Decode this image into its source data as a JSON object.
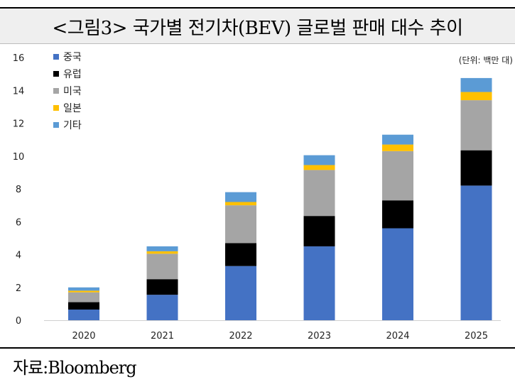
{
  "header": {
    "title": "<그림3> 국가별 전기차(BEV) 글로벌 판매 대수 추이"
  },
  "footer": {
    "source": "자료:Bloomberg"
  },
  "chart_data": {
    "type": "bar",
    "stacked": true,
    "title": "<그림3> 국가별 전기차(BEV) 글로벌 판매 대수 추이",
    "unit_label": "(단위: 백만 대)",
    "xlabel": "",
    "ylabel": "",
    "ylim": [
      0,
      16
    ],
    "yticks": [
      0,
      2,
      4,
      6,
      8,
      10,
      12,
      14,
      16
    ],
    "grid": false,
    "legend": "top-left",
    "categories": [
      "2020",
      "2021",
      "2022",
      "2023",
      "2024",
      "2025"
    ],
    "series": [
      {
        "name": "중국",
        "color": "#4472c4",
        "values": [
          0.65,
          1.55,
          3.3,
          4.5,
          5.6,
          8.2
        ]
      },
      {
        "name": "유럽",
        "color": "#000000",
        "values": [
          0.45,
          0.95,
          1.4,
          1.85,
          1.7,
          2.15
        ]
      },
      {
        "name": "미국",
        "color": "#a5a5a5",
        "values": [
          0.6,
          1.55,
          2.3,
          2.8,
          3.0,
          3.05
        ]
      },
      {
        "name": "일본",
        "color": "#ffc000",
        "values": [
          0.1,
          0.15,
          0.2,
          0.3,
          0.4,
          0.5
        ]
      },
      {
        "name": "기타",
        "color": "#5b9bd5",
        "values": [
          0.2,
          0.3,
          0.6,
          0.6,
          0.6,
          0.85
        ]
      }
    ]
  }
}
